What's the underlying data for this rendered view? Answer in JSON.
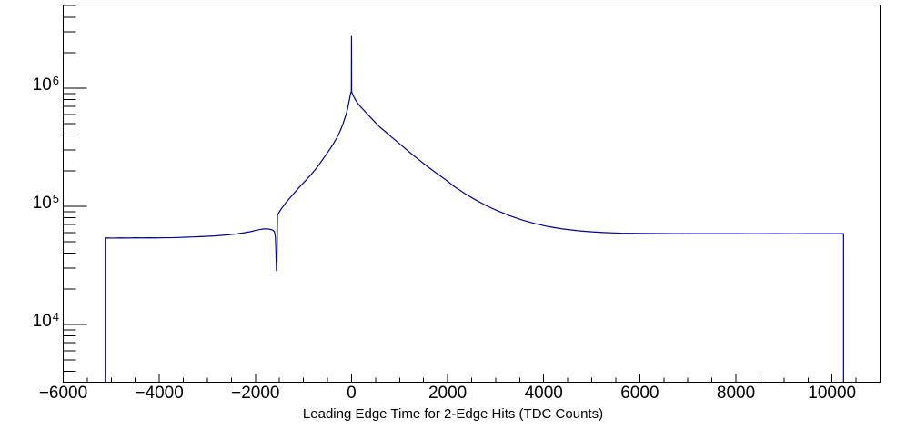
{
  "colors": {
    "background": "#ffffff",
    "axis": "#000000",
    "text": "#000000",
    "histogram_line": "#000099"
  },
  "chart_data": {
    "type": "line",
    "title": "",
    "xlabel": "Leading Edge Time for 2-Edge Hits (TDC Counts)",
    "ylabel": "",
    "grid": false,
    "legend": false,
    "x_axis": {
      "min": -6000,
      "max": 11000,
      "major_step": 2000,
      "minor_step": 500,
      "major_ticks": [
        {
          "value": -6000,
          "label": "−6000"
        },
        {
          "value": -4000,
          "label": "−4000"
        },
        {
          "value": -2000,
          "label": "−2000"
        },
        {
          "value": 0,
          "label": "0"
        },
        {
          "value": 2000,
          "label": "2000"
        },
        {
          "value": 4000,
          "label": "4000"
        },
        {
          "value": 6000,
          "label": "6000"
        },
        {
          "value": 8000,
          "label": "8000"
        },
        {
          "value": 10000,
          "label": "10000"
        }
      ]
    },
    "y_axis": {
      "scale": "log",
      "min": 3242,
      "max": 5060000,
      "major_ticks": [
        {
          "value": 10000,
          "label_base": "10",
          "label_exp": "4"
        },
        {
          "value": 100000,
          "label_base": "10",
          "label_exp": "5"
        },
        {
          "value": 1000000,
          "label_base": "10",
          "label_exp": "6"
        }
      ]
    },
    "series": [
      {
        "name": "Leading Edge Time for 2-Edge Hits",
        "color": "#000099",
        "points": [
          [
            -5125,
            3242
          ],
          [
            -5125,
            54000
          ],
          [
            -4950,
            53800
          ],
          [
            -4800,
            54000
          ],
          [
            -4650,
            53900
          ],
          [
            -4500,
            54100
          ],
          [
            -4350,
            54000
          ],
          [
            -4200,
            54100
          ],
          [
            -4050,
            54000
          ],
          [
            -3900,
            54200
          ],
          [
            -3750,
            54200
          ],
          [
            -3600,
            54400
          ],
          [
            -3450,
            54700
          ],
          [
            -3300,
            55000
          ],
          [
            -3150,
            55300
          ],
          [
            -3000,
            55700
          ],
          [
            -2850,
            56100
          ],
          [
            -2700,
            56700
          ],
          [
            -2550,
            57400
          ],
          [
            -2400,
            58300
          ],
          [
            -2250,
            59500
          ],
          [
            -2100,
            61000
          ],
          [
            -2000,
            62400
          ],
          [
            -1900,
            63700
          ],
          [
            -1820,
            64300
          ],
          [
            -1750,
            64300
          ],
          [
            -1690,
            63800
          ],
          [
            -1640,
            62800
          ],
          [
            -1605,
            61000
          ],
          [
            -1585,
            55000
          ],
          [
            -1572,
            40000
          ],
          [
            -1562,
            28500
          ],
          [
            -1552,
            33000
          ],
          [
            -1546,
            52000
          ],
          [
            -1541,
            84000
          ],
          [
            -1500,
            90000
          ],
          [
            -1450,
            96500
          ],
          [
            -1400,
            103000
          ],
          [
            -1320,
            113000
          ],
          [
            -1240,
            123000
          ],
          [
            -1160,
            134000
          ],
          [
            -1080,
            146000
          ],
          [
            -1000,
            158000
          ],
          [
            -920,
            171000
          ],
          [
            -840,
            186000
          ],
          [
            -760,
            203000
          ],
          [
            -680,
            224000
          ],
          [
            -600,
            249000
          ],
          [
            -520,
            277000
          ],
          [
            -450,
            305000
          ],
          [
            -390,
            332000
          ],
          [
            -330,
            365000
          ],
          [
            -280,
            398000
          ],
          [
            -230,
            440000
          ],
          [
            -180,
            495000
          ],
          [
            -140,
            555000
          ],
          [
            -105,
            615000
          ],
          [
            -80,
            675000
          ],
          [
            -60,
            740000
          ],
          [
            -42,
            805000
          ],
          [
            -28,
            865000
          ],
          [
            -16,
            905000
          ],
          [
            -8,
            928000
          ],
          [
            -3,
            936000
          ],
          [
            0,
            2740000
          ],
          [
            3,
            932000
          ],
          [
            10,
            916000
          ],
          [
            25,
            885000
          ],
          [
            45,
            850000
          ],
          [
            70,
            812000
          ],
          [
            100,
            775000
          ],
          [
            140,
            735000
          ],
          [
            190,
            695000
          ],
          [
            250,
            655000
          ],
          [
            320,
            610000
          ],
          [
            400,
            563000
          ],
          [
            490,
            515000
          ],
          [
            590,
            468000
          ],
          [
            700,
            430000
          ],
          [
            820,
            390000
          ],
          [
            950,
            352000
          ],
          [
            1090,
            315000
          ],
          [
            1240,
            280000
          ],
          [
            1400,
            248000
          ],
          [
            1570,
            219000
          ],
          [
            1750,
            193000
          ],
          [
            1940,
            170000
          ],
          [
            2140,
            147000
          ],
          [
            2350,
            129000
          ],
          [
            2570,
            114000
          ],
          [
            2800,
            101500
          ],
          [
            3040,
            91500
          ],
          [
            3290,
            83200
          ],
          [
            3550,
            76500
          ],
          [
            3820,
            71300
          ],
          [
            4100,
            67200
          ],
          [
            4390,
            64300
          ],
          [
            4690,
            62200
          ],
          [
            5000,
            60700
          ],
          [
            5300,
            59800
          ],
          [
            5600,
            59200
          ],
          [
            6000,
            58900
          ],
          [
            6400,
            58750
          ],
          [
            6800,
            58650
          ],
          [
            7200,
            58600
          ],
          [
            7600,
            58600
          ],
          [
            8000,
            58600
          ],
          [
            8400,
            58550
          ],
          [
            8800,
            58600
          ],
          [
            9200,
            58550
          ],
          [
            9600,
            58600
          ],
          [
            10000,
            58600
          ],
          [
            10240,
            58600
          ],
          [
            10240,
            3242
          ]
        ]
      }
    ]
  }
}
